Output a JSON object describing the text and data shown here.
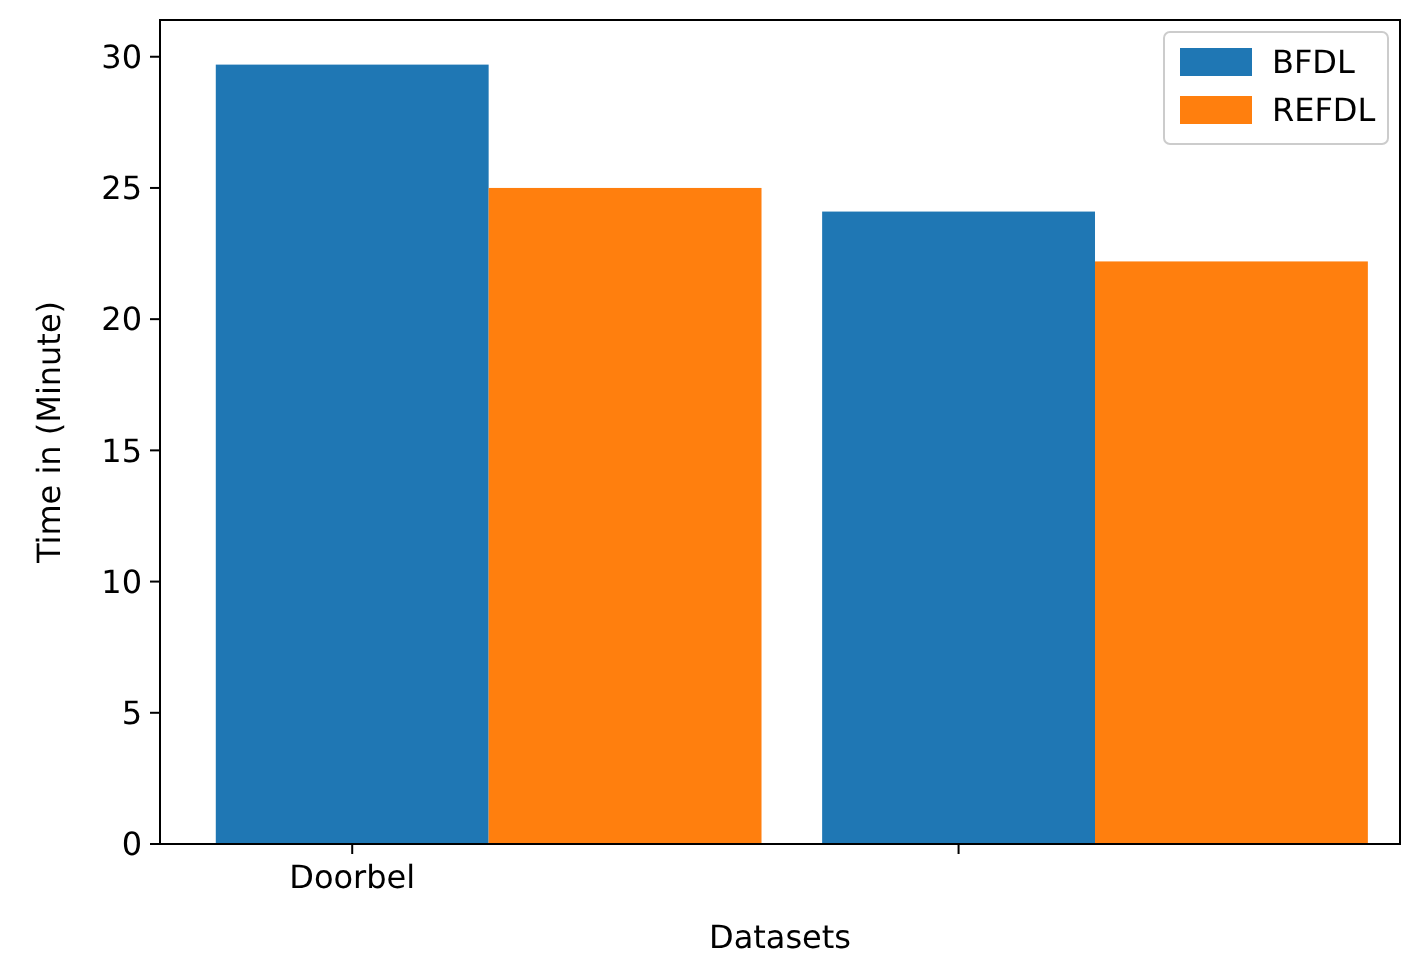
{
  "chart_data": {
    "type": "bar",
    "xlabel": "Datasets",
    "ylabel": "Time in (Minute)",
    "categories": [
      "Doorbel",
      null
    ],
    "series": [
      {
        "name": "BFDL",
        "color": "#1f77b4",
        "values": [
          29.7,
          24.1
        ]
      },
      {
        "name": "REFDL",
        "color": "#ff7f0e",
        "values": [
          25.0,
          22.2
        ]
      }
    ],
    "ylim": [
      0,
      31.4
    ],
    "yticks": [
      0,
      5,
      10,
      15,
      20,
      25,
      30
    ],
    "legend": "top right"
  }
}
